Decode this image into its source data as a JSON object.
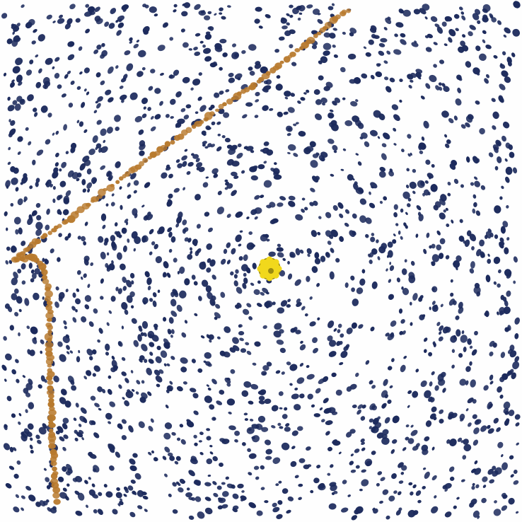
{
  "artwork": {
    "colors": {
      "background": "#fefefe",
      "dots": "#1c2a5c",
      "trail": "#b87a2e",
      "center_marker": "#f1d81c",
      "center_marker_edge": "#9a8a10"
    }
  }
}
